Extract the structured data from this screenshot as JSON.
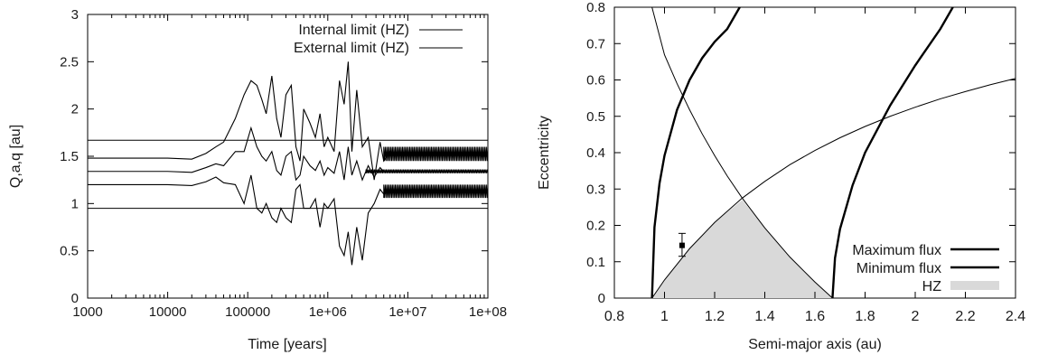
{
  "chart_data": [
    {
      "type": "line",
      "xscale": "log",
      "xlabel": "Time [years]",
      "ylabel": "Q,a,q [au]",
      "xlim": [
        1000,
        100000000
      ],
      "ylim": [
        0,
        3
      ],
      "xtick_labels": [
        "1000",
        "10000",
        "100000",
        "1e+06",
        "1e+07",
        "1e+08"
      ],
      "ytick_labels": [
        "0",
        "0.5",
        "1",
        "1.5",
        "2",
        "2.5",
        "3"
      ],
      "grid": false,
      "legend_position": "top-right",
      "legend": [
        {
          "label": "Internal limit (HZ)"
        },
        {
          "label": "External limit (HZ)"
        }
      ],
      "hlines": [
        {
          "label": "Internal limit (HZ)",
          "y": 0.95,
          "color": "#000000"
        },
        {
          "label": "External limit (HZ)",
          "y": 1.67,
          "color": "#000000"
        }
      ],
      "series": [
        {
          "key": "Q",
          "color": "#000000",
          "x": [
            1000,
            10000,
            20000,
            30000,
            40000,
            50000,
            70000,
            90000,
            110000,
            130000,
            150000,
            170000,
            200000,
            230000,
            260000,
            300000,
            350000,
            400000,
            450000,
            500000,
            600000,
            700000,
            800000,
            900000,
            1000000,
            1200000,
            1400000,
            1600000,
            1800000,
            2000000,
            2300000,
            2700000,
            3200000,
            3800000,
            4500000,
            5000000,
            6000000,
            7000000,
            10000000,
            100000000
          ],
          "y": [
            1.48,
            1.48,
            1.47,
            1.53,
            1.6,
            1.65,
            1.9,
            2.15,
            2.3,
            2.25,
            2.1,
            1.95,
            2.35,
            1.9,
            1.7,
            2.15,
            2.25,
            1.6,
            1.45,
            2.0,
            1.85,
            1.7,
            1.95,
            1.6,
            1.7,
            1.55,
            2.3,
            2.05,
            2.5,
            1.55,
            2.2,
            1.6,
            1.7,
            1.25,
            1.65,
            1.45,
            1.55,
            1.52,
            1.52,
            1.52
          ]
        },
        {
          "key": "a",
          "color": "#000000",
          "x": [
            1000,
            10000,
            20000,
            30000,
            40000,
            50000,
            70000,
            90000,
            110000,
            130000,
            150000,
            170000,
            200000,
            230000,
            260000,
            300000,
            350000,
            400000,
            450000,
            500000,
            600000,
            700000,
            800000,
            900000,
            1000000,
            1200000,
            1400000,
            1600000,
            1800000,
            2000000,
            2300000,
            2700000,
            3200000,
            3800000,
            4500000,
            5000000,
            6000000,
            7000000,
            10000000,
            100000000
          ],
          "y": [
            1.34,
            1.34,
            1.33,
            1.38,
            1.42,
            1.4,
            1.55,
            1.55,
            1.8,
            1.6,
            1.5,
            1.45,
            1.55,
            1.35,
            1.3,
            1.5,
            1.55,
            1.25,
            1.3,
            1.5,
            1.4,
            1.35,
            1.45,
            1.3,
            1.38,
            1.32,
            1.55,
            1.25,
            1.6,
            1.3,
            1.45,
            1.25,
            1.4,
            1.28,
            1.38,
            1.34,
            1.34,
            1.34,
            1.34,
            1.34
          ]
        },
        {
          "key": "q",
          "color": "#000000",
          "x": [
            1000,
            10000,
            20000,
            30000,
            40000,
            50000,
            70000,
            90000,
            110000,
            130000,
            150000,
            170000,
            200000,
            230000,
            260000,
            300000,
            350000,
            400000,
            450000,
            500000,
            600000,
            700000,
            800000,
            900000,
            1000000,
            1200000,
            1400000,
            1600000,
            1800000,
            2000000,
            2300000,
            2700000,
            3200000,
            3800000,
            4500000,
            5000000,
            6000000,
            7000000,
            10000000,
            100000000
          ],
          "y": [
            1.2,
            1.2,
            1.19,
            1.23,
            1.28,
            1.22,
            1.2,
            1.0,
            1.3,
            0.95,
            0.9,
            1.0,
            0.85,
            0.8,
            0.95,
            0.85,
            0.8,
            1.15,
            1.2,
            0.95,
            0.95,
            1.05,
            0.75,
            1.0,
            0.95,
            1.05,
            0.55,
            0.45,
            0.7,
            0.35,
            0.75,
            0.4,
            0.9,
            1.0,
            1.15,
            1.1,
            1.13,
            1.13,
            1.13,
            1.13
          ]
        }
      ],
      "oscillation_bands": [
        {
          "x": [
            5000000,
            100000000
          ],
          "y": [
            1.45,
            1.6
          ]
        },
        {
          "x": [
            5000000,
            100000000
          ],
          "y": [
            1.06,
            1.2
          ]
        },
        {
          "x": [
            3000000,
            100000000
          ],
          "y": [
            1.32,
            1.36
          ]
        }
      ]
    },
    {
      "type": "line",
      "xlabel": "Semi-major axis (au)",
      "ylabel": "Eccentricity",
      "xlim": [
        0.8,
        2.4
      ],
      "ylim": [
        0,
        0.8
      ],
      "xtick_labels": [
        "0.8",
        "1",
        "1.2",
        "1.4",
        "1.6",
        "1.8",
        "2",
        "2.2",
        "2.4"
      ],
      "ytick_labels": [
        "0",
        "0.1",
        "0.2",
        "0.3",
        "0.4",
        "0.5",
        "0.6",
        "0.7",
        "0.8"
      ],
      "grid": false,
      "legend_position": "bottom-right",
      "legend": [
        {
          "label": "Maximum flux",
          "style": "thick-line"
        },
        {
          "label": "Minimum flux",
          "style": "thick-line"
        },
        {
          "label": "HZ",
          "style": "filled-area"
        }
      ],
      "curves": [
        {
          "label": "Maximum flux",
          "color": "#000000",
          "width": "thick",
          "x": [
            0.95,
            0.96,
            0.98,
            1.0,
            1.05,
            1.1,
            1.15,
            1.2,
            1.25,
            1.3
          ],
          "y": [
            0.0,
            0.195,
            0.315,
            0.392,
            0.518,
            0.6,
            0.66,
            0.705,
            0.74,
            0.8
          ]
        },
        {
          "label": "Minimum flux",
          "color": "#000000",
          "width": "thick",
          "x": [
            1.67,
            1.68,
            1.7,
            1.75,
            1.8,
            1.9,
            2.0,
            2.1,
            2.15
          ],
          "y": [
            0.0,
            0.11,
            0.19,
            0.31,
            0.4,
            0.53,
            0.64,
            0.74,
            0.8
          ]
        },
        {
          "label": "thin-rising",
          "color": "#000000",
          "width": "thin",
          "x": [
            0.95,
            1.0,
            1.1,
            1.2,
            1.31,
            1.4,
            1.5,
            1.6,
            1.7,
            1.8,
            1.9,
            2.0,
            2.1,
            2.2,
            2.3,
            2.4
          ],
          "y": [
            0.0,
            0.05,
            0.136,
            0.208,
            0.275,
            0.321,
            0.367,
            0.406,
            0.441,
            0.472,
            0.5,
            0.525,
            0.548,
            0.568,
            0.587,
            0.604
          ]
        },
        {
          "label": "thin-falling",
          "color": "#000000",
          "width": "thin",
          "x": [
            0.95,
            1.0,
            1.05,
            1.1,
            1.15,
            1.2,
            1.25,
            1.31,
            1.4,
            1.5,
            1.6,
            1.67
          ],
          "y": [
            0.8,
            0.669,
            0.59,
            0.518,
            0.452,
            0.392,
            0.336,
            0.275,
            0.193,
            0.113,
            0.044,
            0.0
          ]
        }
      ],
      "hz_region": {
        "label": "HZ",
        "color": "#d9d9d9",
        "x": [
          0.95,
          1.0,
          1.1,
          1.2,
          1.31,
          1.4,
          1.5,
          1.6,
          1.67
        ],
        "y": [
          0.0,
          0.05,
          0.136,
          0.208,
          0.27,
          0.193,
          0.113,
          0.044,
          0.0
        ]
      },
      "point": {
        "x": 1.07,
        "y": 0.145,
        "yerr": [
          0.03,
          0.033
        ]
      }
    }
  ]
}
